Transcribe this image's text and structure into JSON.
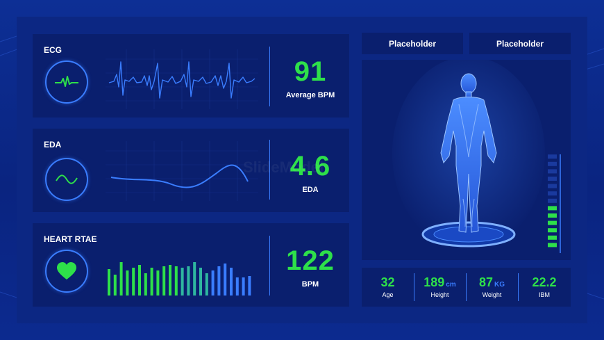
{
  "colors": {
    "background": "#0b2a8c",
    "panel": "#0a1f6e",
    "accent_blue": "#3a7dff",
    "accent_green": "#2ee04a",
    "text": "#ffffff"
  },
  "left_panels": [
    {
      "title": "ECG",
      "icon": "heartbeat-icon",
      "value": "91",
      "label": "Average BPM"
    },
    {
      "title": "EDA",
      "icon": "wave-icon",
      "value": "4.6",
      "label": "EDA"
    },
    {
      "title": "HEART RTAE",
      "icon": "heart-icon",
      "value": "122",
      "label": "BPM"
    }
  ],
  "placeholders": [
    "Placeholder",
    "Placeholder"
  ],
  "body_panel": {
    "icon": "human-body-icon",
    "level_bars_total": 13,
    "level_bars_lit": 6
  },
  "stats": [
    {
      "value": "32",
      "unit": "",
      "label": "Age"
    },
    {
      "value": "189",
      "unit": "cm",
      "label": "Height"
    },
    {
      "value": "87",
      "unit": "KG",
      "label": "Weight"
    },
    {
      "value": "22.2",
      "unit": "",
      "label": "IBM"
    }
  ],
  "watermark": "SlideModel"
}
